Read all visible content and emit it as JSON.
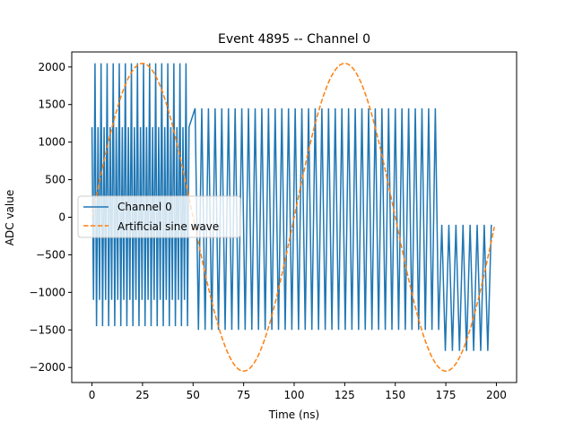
{
  "chart_data": {
    "type": "line",
    "title": "Event 4895 -- Channel 0",
    "xlabel": "Time (ns)",
    "ylabel": "ADC value",
    "xlim": [
      -10,
      210
    ],
    "ylim": [
      -2200,
      2200
    ],
    "x_ticks": [
      0,
      25,
      50,
      75,
      100,
      125,
      150,
      175,
      200
    ],
    "x_tick_labels": [
      "0",
      "25",
      "50",
      "75",
      "100",
      "125",
      "150",
      "175",
      "200"
    ],
    "y_ticks": [
      2000,
      1500,
      1000,
      500,
      0,
      -500,
      -1000,
      -1500,
      -2000
    ],
    "y_tick_labels": [
      "2000",
      "1500",
      "1000",
      "500",
      "0",
      "−500",
      "−1000",
      "−1500",
      "−2000"
    ],
    "grid": false,
    "legend_position": "center-left",
    "series": [
      {
        "name": "Channel 0",
        "style": "solid",
        "color": "#1f77b4",
        "segments": [
          {
            "x_start": 0,
            "x_end": 48,
            "period": 1.5,
            "peaks": [
              1200,
              2050
            ],
            "troughs": [
              -1100,
              -1450
            ]
          },
          {
            "x_start": 51,
            "x_end": 173,
            "period": 3.3,
            "peaks": [
              1450
            ],
            "troughs": [
              -1500
            ]
          },
          {
            "x_start": 173,
            "x_end": 198,
            "period": 3.5,
            "peaks": [
              -100
            ],
            "troughs": [
              -1780
            ]
          }
        ]
      },
      {
        "name": "Artificial sine wave",
        "style": "dashed",
        "color": "#ff7f0e",
        "amplitude": 2048,
        "period_ns": 100,
        "x_range": [
          0,
          199
        ]
      }
    ]
  }
}
